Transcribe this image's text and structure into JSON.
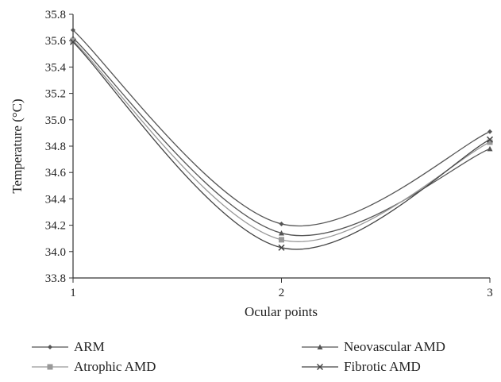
{
  "chart_data": {
    "type": "line",
    "xlabel": "Ocular points",
    "ylabel": "Temperature (°C)",
    "x": [
      1,
      2,
      3
    ],
    "xticks": [
      "1",
      "2",
      "3"
    ],
    "ylim": [
      33.8,
      35.8
    ],
    "yticks": [
      "33.8",
      "34.0",
      "34.2",
      "34.4",
      "34.6",
      "34.8",
      "35.0",
      "35.2",
      "35.4",
      "35.6",
      "35.8"
    ],
    "grid": false,
    "legend_position": "bottom",
    "series": [
      {
        "name": "ARM",
        "values": [
          35.68,
          34.21,
          34.91
        ],
        "marker": "diamond",
        "color": "#555555"
      },
      {
        "name": "Neovascular AMD",
        "values": [
          35.62,
          34.14,
          34.78
        ],
        "marker": "triangle",
        "color": "#555555"
      },
      {
        "name": "Atrophic AMD",
        "values": [
          35.6,
          34.09,
          34.83
        ],
        "marker": "square",
        "color": "#999999"
      },
      {
        "name": "Fibrotic AMD",
        "values": [
          35.59,
          34.03,
          34.85
        ],
        "marker": "x",
        "color": "#444444"
      }
    ]
  }
}
